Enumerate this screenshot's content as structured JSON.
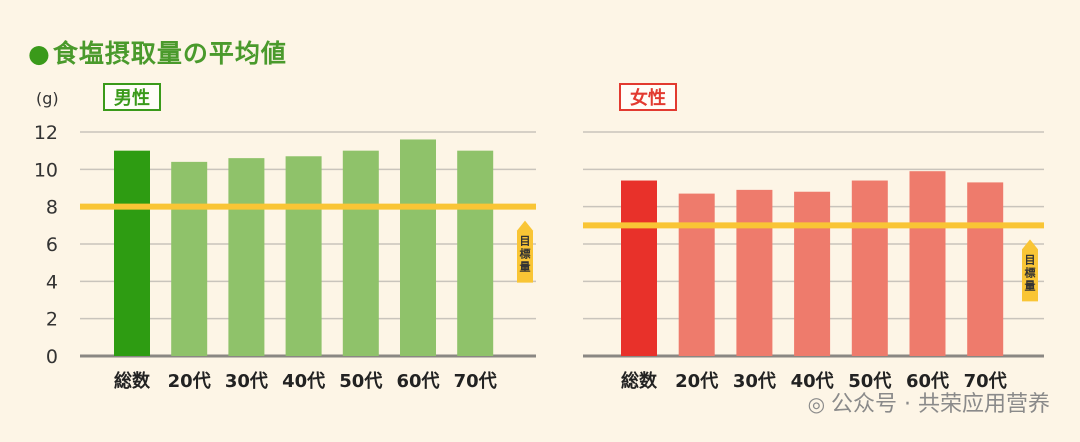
{
  "title": "食塩摂取量の平均値",
  "watermark": "公众号 · 共荣应用营养",
  "colors": {
    "male_total": "#2e9c12",
    "male_age": "#8fc26a",
    "female_total": "#e8312a",
    "female_age": "#ee7b6c",
    "target_line": "#f9c535",
    "grid": "#c9c4bc",
    "axis": "#8a8783",
    "male_badge": "#3a9a1a",
    "female_badge": "#e23a30"
  },
  "chart_data": {
    "type": "bar",
    "ylabel": "(g)",
    "ylim": [
      0,
      12
    ],
    "yticks": [
      "0",
      "2",
      "4",
      "6",
      "8",
      "10",
      "12"
    ],
    "grid": true,
    "groups": [
      {
        "name": "男性",
        "categories": [
          "総数",
          "20代",
          "30代",
          "40代",
          "50代",
          "60代",
          "70代"
        ],
        "values": [
          11.0,
          10.4,
          10.6,
          10.7,
          11.0,
          11.6,
          11.0
        ],
        "target": 8.0,
        "target_label": "目標量"
      },
      {
        "name": "女性",
        "categories": [
          "総数",
          "20代",
          "30代",
          "40代",
          "50代",
          "60代",
          "70代"
        ],
        "values": [
          9.4,
          8.7,
          8.9,
          8.8,
          9.4,
          9.9,
          9.3
        ],
        "target": 7.0,
        "target_label": "目標量"
      }
    ]
  }
}
